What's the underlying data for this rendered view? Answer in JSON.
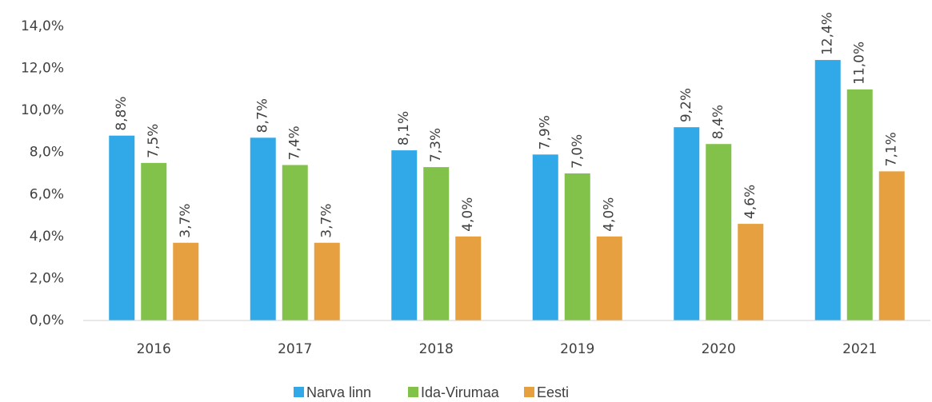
{
  "chart_data": {
    "type": "bar",
    "categories": [
      "2016",
      "2017",
      "2018",
      "2019",
      "2020",
      "2021"
    ],
    "series": [
      {
        "name": "Narva linn",
        "color": "#31a9e8",
        "values": [
          8.8,
          8.7,
          8.1,
          7.9,
          9.2,
          12.4
        ],
        "value_labels": [
          "8,8%",
          "8,7%",
          "8,1%",
          "7,9%",
          "9,2%",
          "12,4%"
        ]
      },
      {
        "name": "Ida-Virumaa",
        "color": "#82c24a",
        "values": [
          7.5,
          7.4,
          7.3,
          7.0,
          8.4,
          11.0
        ],
        "value_labels": [
          "7,5%",
          "7,4%",
          "7,3%",
          "7,0%",
          "8,4%",
          "11,0%"
        ]
      },
      {
        "name": "Eesti",
        "color": "#e6a040",
        "values": [
          3.7,
          3.7,
          4.0,
          4.0,
          4.6,
          7.1
        ],
        "value_labels": [
          "3,7%",
          "3,7%",
          "4,0%",
          "4,0%",
          "4,6%",
          "7,1%"
        ]
      }
    ],
    "ylim": [
      0,
      14
    ],
    "yticks": [
      {
        "value": 0,
        "label": "0,0%"
      },
      {
        "value": 2,
        "label": "2,0%"
      },
      {
        "value": 4,
        "label": "4,0%"
      },
      {
        "value": 6,
        "label": "6,0%"
      },
      {
        "value": 8,
        "label": "8,0%"
      },
      {
        "value": 10,
        "label": "10,0%"
      },
      {
        "value": 12,
        "label": "12,0%"
      },
      {
        "value": 14,
        "label": "14,0%"
      }
    ],
    "legend": "bottom"
  }
}
